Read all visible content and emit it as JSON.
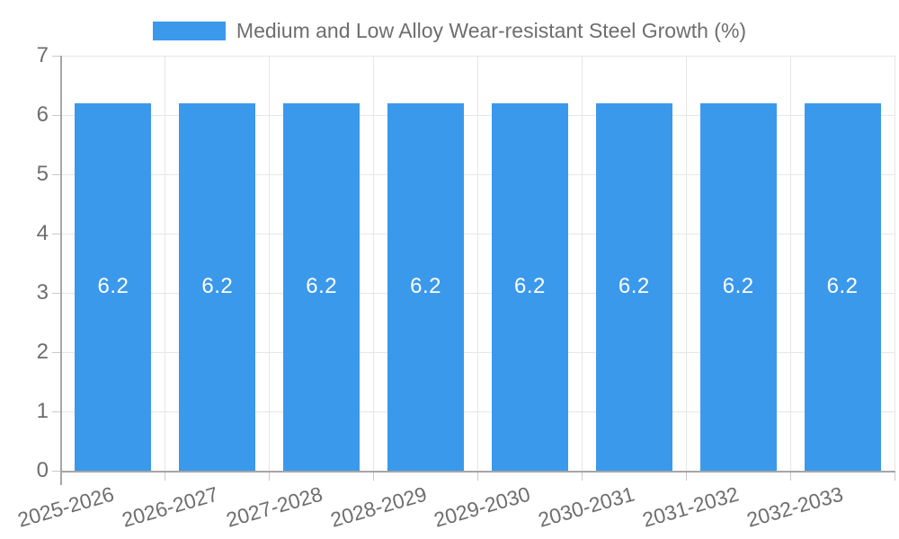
{
  "chart_data": {
    "type": "bar",
    "title": "Medium and Low Alloy Wear-resistant Steel Growth (%)",
    "legend": {
      "position": "top",
      "entries": [
        {
          "label": "Medium and Low Alloy Wear-resistant Steel Growth (%)",
          "color": "#3b99ec"
        }
      ]
    },
    "categories": [
      "2025-2026",
      "2026-2027",
      "2027-2028",
      "2028-2029",
      "2029-2030",
      "2030-2031",
      "2031-2032",
      "2032-2033"
    ],
    "values": [
      6.2,
      6.2,
      6.2,
      6.2,
      6.2,
      6.2,
      6.2,
      6.2
    ],
    "value_labels": [
      "6.2",
      "6.2",
      "6.2",
      "6.2",
      "6.2",
      "6.2",
      "6.2",
      "6.2"
    ],
    "xlabel": "",
    "ylabel": "",
    "ylim": [
      0,
      7
    ],
    "yticks": [
      0,
      1,
      2,
      3,
      4,
      5,
      6,
      7
    ],
    "grid": true,
    "x_label_rotation_deg": -16,
    "colors": {
      "bar": "#3b99ec",
      "bar_value_text": "#ffffff",
      "axis_text": "#6e6e6e",
      "gridline": "#e6e6e6",
      "axis_line": "#a6a6a6",
      "tick": "#c9c9c9",
      "background": "#ffffff"
    }
  }
}
